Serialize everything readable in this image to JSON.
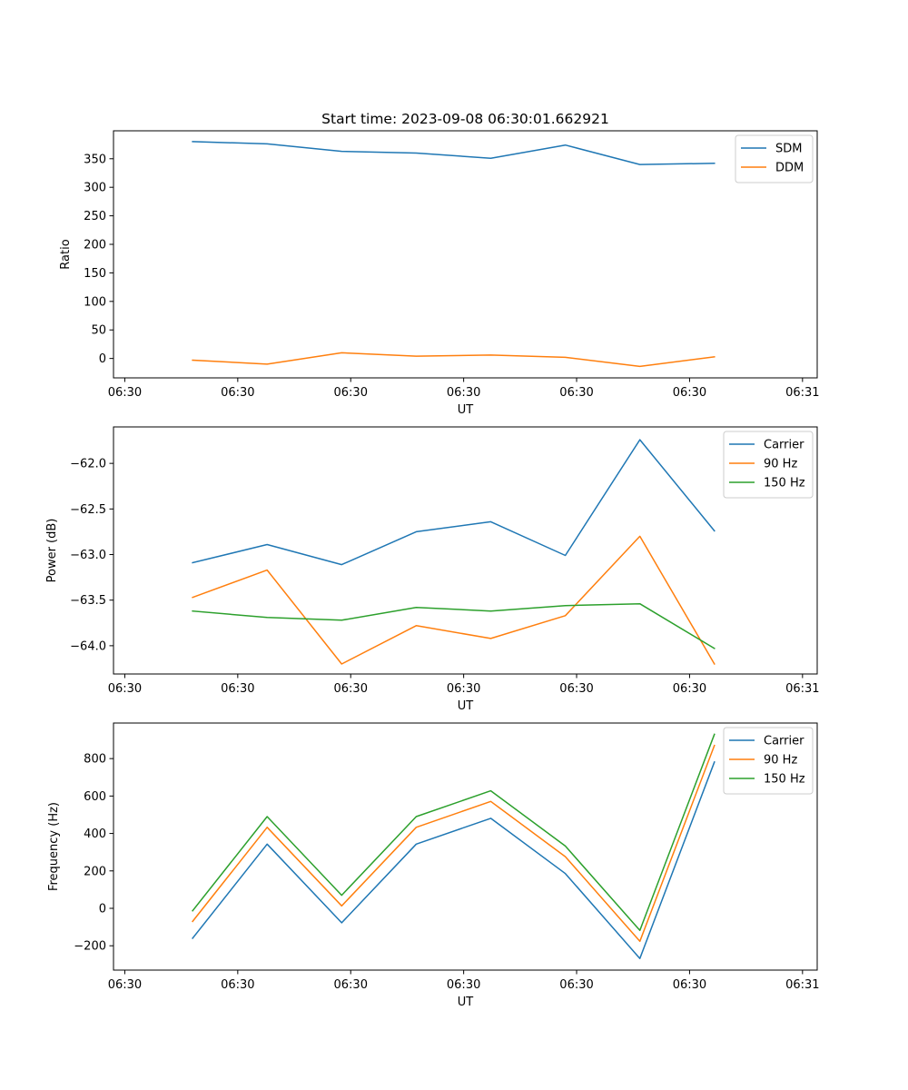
{
  "figure_title": "Start time: 2023-09-08 06:30:01.662921",
  "colors": {
    "tab_blue": "#1f77b4",
    "tab_orange": "#ff7f0e",
    "tab_green": "#2ca02c"
  },
  "chart_data": [
    {
      "type": "line",
      "title": "Start time: 2023-09-08 06:30:01.662921",
      "xlabel": "UT",
      "ylabel": "Ratio",
      "x_unit": "seconds after 06:30:00",
      "xlim": [
        -1.0,
        61.3
      ],
      "ylim": [
        -34,
        399
      ],
      "x": [
        6.0,
        12.6,
        19.2,
        25.8,
        32.4,
        39.0,
        45.6,
        52.2
      ],
      "x_ticks": [
        0,
        10,
        20,
        30,
        40,
        50,
        60
      ],
      "x_tick_labels": [
        "06:30",
        "06:30",
        "06:30",
        "06:30",
        "06:30",
        "06:30",
        "06:31"
      ],
      "y_ticks": [
        0,
        50,
        100,
        150,
        200,
        250,
        300,
        350
      ],
      "y_tick_labels": [
        "0",
        "50",
        "100",
        "150",
        "200",
        "250",
        "300",
        "350"
      ],
      "legend_position": "top-right",
      "series": [
        {
          "name": "SDM",
          "color": "#1f77b4",
          "values": [
            380,
            376,
            363,
            360,
            351,
            374,
            340,
            342
          ]
        },
        {
          "name": "DDM",
          "color": "#ff7f0e",
          "values": [
            -3,
            -10,
            10,
            4,
            6,
            2,
            -14,
            3
          ]
        }
      ]
    },
    {
      "type": "line",
      "title": "",
      "xlabel": "UT",
      "ylabel": "Power (dB)",
      "x_unit": "seconds after 06:30:00",
      "xlim": [
        -1.0,
        61.3
      ],
      "ylim": [
        -64.31,
        -61.6
      ],
      "x": [
        6.0,
        12.6,
        19.2,
        25.8,
        32.4,
        39.0,
        45.6,
        52.2
      ],
      "x_ticks": [
        0,
        10,
        20,
        30,
        40,
        50,
        60
      ],
      "x_tick_labels": [
        "06:30",
        "06:30",
        "06:30",
        "06:30",
        "06:30",
        "06:30",
        "06:31"
      ],
      "y_ticks": [
        -64.0,
        -63.5,
        -63.0,
        -62.5,
        -62.0
      ],
      "y_tick_labels": [
        "−64.0",
        "−63.5",
        "−63.0",
        "−62.5",
        "−62.0"
      ],
      "legend_position": "top-right",
      "series": [
        {
          "name": "Carrier",
          "color": "#1f77b4",
          "values": [
            -63.09,
            -62.89,
            -63.11,
            -62.75,
            -62.64,
            -63.01,
            -61.74,
            -62.74
          ]
        },
        {
          "name": "90 Hz",
          "color": "#ff7f0e",
          "values": [
            -63.47,
            -63.17,
            -64.2,
            -63.78,
            -63.92,
            -63.67,
            -62.8,
            -64.2
          ]
        },
        {
          "name": "150 Hz",
          "color": "#2ca02c",
          "values": [
            -63.62,
            -63.69,
            -63.72,
            -63.58,
            -63.62,
            -63.56,
            -63.54,
            -64.03
          ]
        }
      ]
    },
    {
      "type": "line",
      "title": "",
      "xlabel": "UT",
      "ylabel": "Frequency (Hz)",
      "x_unit": "seconds after 06:30:00",
      "xlim": [
        -1.0,
        61.3
      ],
      "ylim": [
        -330,
        990
      ],
      "x": [
        6.0,
        12.6,
        19.2,
        25.8,
        32.4,
        39.0,
        45.6,
        52.2
      ],
      "x_ticks": [
        0,
        10,
        20,
        30,
        40,
        50,
        60
      ],
      "x_tick_labels": [
        "06:30",
        "06:30",
        "06:30",
        "06:30",
        "06:30",
        "06:30",
        "06:31"
      ],
      "y_ticks": [
        -200,
        0,
        200,
        400,
        600,
        800
      ],
      "y_tick_labels": [
        "−200",
        "0",
        "200",
        "400",
        "600",
        "800"
      ],
      "legend_position": "top-right",
      "series": [
        {
          "name": "Carrier",
          "color": "#1f77b4",
          "values": [
            -160,
            343,
            -77,
            343,
            481,
            186,
            -268,
            782
          ]
        },
        {
          "name": "90 Hz",
          "color": "#ff7f0e",
          "values": [
            -70,
            433,
            13,
            433,
            571,
            276,
            -176,
            870
          ]
        },
        {
          "name": "150 Hz",
          "color": "#2ca02c",
          "values": [
            -13,
            490,
            70,
            490,
            628,
            333,
            -118,
            930
          ]
        }
      ]
    }
  ]
}
